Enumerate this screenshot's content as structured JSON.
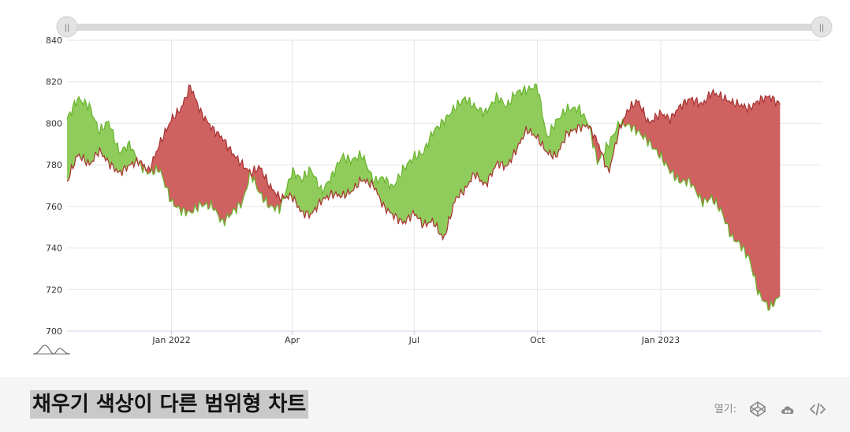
{
  "page": {
    "title": "채우기 색상이 다른 범위형 차트",
    "open_label": "열기:",
    "icons": [
      "codepen-icon",
      "cloud-icon",
      "code-icon"
    ],
    "slider_handles": [
      "range-slider-start-handle",
      "range-slider-end-handle"
    ],
    "slider_handle_glyph": "||"
  },
  "chart_data": {
    "type": "area",
    "subtype": "range-area",
    "title": "",
    "xlabel": "",
    "ylabel": "",
    "ylim": [
      700,
      840
    ],
    "yticks": [
      700,
      720,
      740,
      760,
      780,
      800,
      820,
      840
    ],
    "xlim": [
      "2021-10-15",
      "2023-05-01"
    ],
    "xticks": [
      {
        "date": "2022-01-01",
        "label": "Jan 2022"
      },
      {
        "date": "2022-04-01",
        "label": "Apr"
      },
      {
        "date": "2022-07-01",
        "label": "Jul"
      },
      {
        "date": "2022-10-01",
        "label": "Oct"
      },
      {
        "date": "2023-01-01",
        "label": "Jan 2023"
      }
    ],
    "grid": true,
    "legend": "none",
    "colors": {
      "green_fill": "#8fcc5c",
      "green_line": "#69b32c",
      "red_fill": "#cf6161",
      "red_line": "#a83232"
    },
    "fill_rule": "green where series A is above series B, red where series B is above series A",
    "series": [
      {
        "name": "",
        "points": [
          [
            "2021-10-15",
            802
          ],
          [
            "2021-10-23",
            812
          ],
          [
            "2021-11-01",
            808
          ],
          [
            "2021-11-08",
            796
          ],
          [
            "2021-11-15",
            801
          ],
          [
            "2021-11-23",
            786
          ],
          [
            "2021-12-01",
            790
          ],
          [
            "2021-12-08",
            780
          ],
          [
            "2021-12-15",
            776
          ],
          [
            "2021-12-23",
            778
          ],
          [
            "2022-01-01",
            762
          ],
          [
            "2022-01-08",
            758
          ],
          [
            "2022-01-15",
            757
          ],
          [
            "2022-01-23",
            761
          ],
          [
            "2022-02-01",
            760
          ],
          [
            "2022-02-08",
            752
          ],
          [
            "2022-02-15",
            757
          ],
          [
            "2022-02-23",
            762
          ],
          [
            "2022-03-01",
            776
          ],
          [
            "2022-03-08",
            766
          ],
          [
            "2022-03-15",
            760
          ],
          [
            "2022-03-23",
            759
          ],
          [
            "2022-04-01",
            777
          ],
          [
            "2022-04-08",
            773
          ],
          [
            "2022-04-15",
            778
          ],
          [
            "2022-04-23",
            767
          ],
          [
            "2022-05-01",
            775
          ],
          [
            "2022-05-08",
            784
          ],
          [
            "2022-05-15",
            782
          ],
          [
            "2022-05-23",
            785
          ],
          [
            "2022-06-01",
            772
          ],
          [
            "2022-06-08",
            774
          ],
          [
            "2022-06-15",
            769
          ],
          [
            "2022-06-23",
            778
          ],
          [
            "2022-07-01",
            784
          ],
          [
            "2022-07-08",
            786
          ],
          [
            "2022-07-15",
            796
          ],
          [
            "2022-07-23",
            801
          ],
          [
            "2022-08-01",
            808
          ],
          [
            "2022-08-08",
            812
          ],
          [
            "2022-08-15",
            808
          ],
          [
            "2022-08-23",
            805
          ],
          [
            "2022-09-01",
            813
          ],
          [
            "2022-09-08",
            808
          ],
          [
            "2022-09-15",
            815
          ],
          [
            "2022-09-23",
            816
          ],
          [
            "2022-10-01",
            818
          ],
          [
            "2022-10-08",
            793
          ],
          [
            "2022-10-15",
            801
          ],
          [
            "2022-10-23",
            807
          ],
          [
            "2022-11-01",
            807
          ],
          [
            "2022-11-08",
            800
          ],
          [
            "2022-11-15",
            781
          ],
          [
            "2022-11-23",
            790
          ],
          [
            "2022-12-01",
            800
          ],
          [
            "2022-12-08",
            799
          ],
          [
            "2022-12-15",
            796
          ],
          [
            "2022-12-23",
            791
          ],
          [
            "2023-01-01",
            784
          ],
          [
            "2023-01-08",
            777
          ],
          [
            "2023-01-15",
            772
          ],
          [
            "2023-01-23",
            772
          ],
          [
            "2023-02-01",
            762
          ],
          [
            "2023-02-08",
            764
          ],
          [
            "2023-02-15",
            758
          ],
          [
            "2023-02-23",
            745
          ],
          [
            "2023-03-01",
            742
          ],
          [
            "2023-03-08",
            735
          ],
          [
            "2023-03-15",
            718
          ],
          [
            "2023-03-23",
            711
          ],
          [
            "2023-03-31",
            717
          ]
        ]
      },
      {
        "name": "",
        "points": [
          [
            "2021-10-15",
            772
          ],
          [
            "2021-10-23",
            785
          ],
          [
            "2021-11-01",
            780
          ],
          [
            "2021-11-08",
            787
          ],
          [
            "2021-11-15",
            781
          ],
          [
            "2021-11-23",
            776
          ],
          [
            "2021-12-01",
            780
          ],
          [
            "2021-12-08",
            782
          ],
          [
            "2021-12-15",
            777
          ],
          [
            "2021-12-23",
            790
          ],
          [
            "2022-01-01",
            802
          ],
          [
            "2022-01-08",
            807
          ],
          [
            "2022-01-15",
            818
          ],
          [
            "2022-01-23",
            805
          ],
          [
            "2022-02-01",
            797
          ],
          [
            "2022-02-08",
            793
          ],
          [
            "2022-02-15",
            786
          ],
          [
            "2022-02-23",
            780
          ],
          [
            "2022-03-01",
            776
          ],
          [
            "2022-03-08",
            779
          ],
          [
            "2022-03-15",
            770
          ],
          [
            "2022-03-23",
            764
          ],
          [
            "2022-04-01",
            765
          ],
          [
            "2022-04-08",
            757
          ],
          [
            "2022-04-15",
            756
          ],
          [
            "2022-04-23",
            763
          ],
          [
            "2022-05-01",
            766
          ],
          [
            "2022-05-08",
            765
          ],
          [
            "2022-05-15",
            767
          ],
          [
            "2022-05-23",
            773
          ],
          [
            "2022-06-01",
            770
          ],
          [
            "2022-06-08",
            760
          ],
          [
            "2022-06-15",
            756
          ],
          [
            "2022-06-23",
            752
          ],
          [
            "2022-07-01",
            757
          ],
          [
            "2022-07-08",
            751
          ],
          [
            "2022-07-15",
            753
          ],
          [
            "2022-07-23",
            744
          ],
          [
            "2022-08-01",
            764
          ],
          [
            "2022-08-08",
            768
          ],
          [
            "2022-08-15",
            776
          ],
          [
            "2022-08-23",
            770
          ],
          [
            "2022-09-01",
            781
          ],
          [
            "2022-09-08",
            779
          ],
          [
            "2022-09-15",
            787
          ],
          [
            "2022-09-23",
            797
          ],
          [
            "2022-10-01",
            793
          ],
          [
            "2022-10-08",
            786
          ],
          [
            "2022-10-15",
            784
          ],
          [
            "2022-10-23",
            795
          ],
          [
            "2022-11-01",
            798
          ],
          [
            "2022-11-08",
            799
          ],
          [
            "2022-11-15",
            791
          ],
          [
            "2022-11-23",
            776
          ],
          [
            "2022-12-01",
            797
          ],
          [
            "2022-12-08",
            807
          ],
          [
            "2022-12-15",
            811
          ],
          [
            "2022-12-23",
            800
          ],
          [
            "2023-01-01",
            805
          ],
          [
            "2023-01-08",
            802
          ],
          [
            "2023-01-15",
            808
          ],
          [
            "2023-01-23",
            812
          ],
          [
            "2023-02-01",
            809
          ],
          [
            "2023-02-08",
            815
          ],
          [
            "2023-02-15",
            813
          ],
          [
            "2023-02-23",
            810
          ],
          [
            "2023-03-01",
            809
          ],
          [
            "2023-03-08",
            807
          ],
          [
            "2023-03-15",
            811
          ],
          [
            "2023-03-23",
            813
          ],
          [
            "2023-03-31",
            809
          ]
        ]
      }
    ]
  }
}
